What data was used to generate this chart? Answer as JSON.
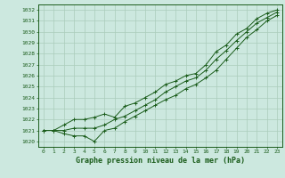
{
  "title": "Graphe pression niveau de la mer (hPa)",
  "xlabel_ticks": [
    0,
    1,
    2,
    3,
    4,
    5,
    6,
    7,
    8,
    9,
    10,
    11,
    12,
    13,
    14,
    15,
    16,
    17,
    18,
    19,
    20,
    21,
    22,
    23
  ],
  "yticks": [
    1020,
    1021,
    1022,
    1023,
    1024,
    1025,
    1026,
    1027,
    1028,
    1029,
    1030,
    1031,
    1032
  ],
  "ylim": [
    1019.5,
    1032.5
  ],
  "xlim": [
    -0.5,
    23.5
  ],
  "bg_color": "#cce8df",
  "grid_color": "#aaccbb",
  "line_color": "#1a5c1a",
  "series": {
    "low": [
      1021.0,
      1021.0,
      1020.7,
      1020.5,
      1020.5,
      1020.0,
      1021.0,
      1021.2,
      1021.8,
      1022.3,
      1022.8,
      1023.3,
      1023.8,
      1024.2,
      1024.8,
      1025.2,
      1025.8,
      1026.5,
      1027.5,
      1028.5,
      1029.5,
      1030.2,
      1031.0,
      1031.5
    ],
    "mid": [
      1021.0,
      1021.0,
      1021.0,
      1021.2,
      1021.2,
      1021.2,
      1021.5,
      1022.0,
      1022.3,
      1022.8,
      1023.3,
      1023.8,
      1024.5,
      1025.0,
      1025.5,
      1025.8,
      1026.5,
      1027.5,
      1028.3,
      1029.2,
      1030.0,
      1030.8,
      1031.3,
      1031.8
    ],
    "high": [
      1021.0,
      1021.0,
      1021.5,
      1022.0,
      1022.0,
      1022.2,
      1022.5,
      1022.2,
      1023.2,
      1023.5,
      1024.0,
      1024.5,
      1025.2,
      1025.5,
      1026.0,
      1026.2,
      1027.0,
      1028.2,
      1028.8,
      1029.8,
      1030.3,
      1031.2,
      1031.7,
      1032.0
    ]
  }
}
